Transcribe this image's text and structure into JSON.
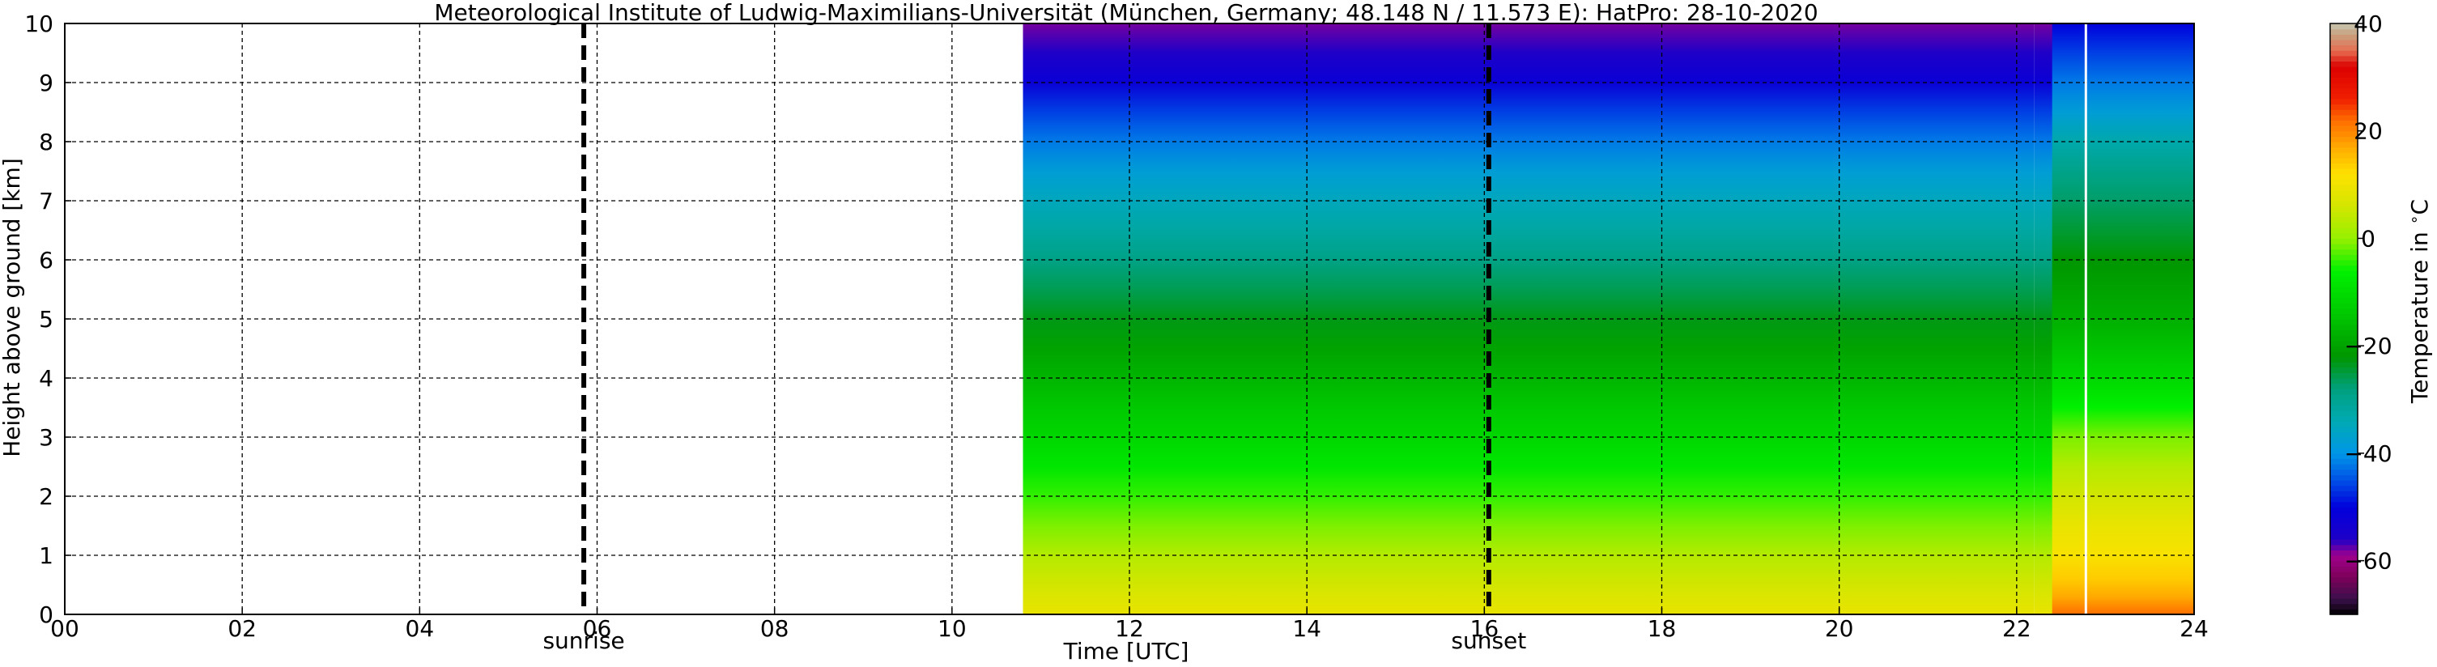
{
  "chart_data": {
    "type": "heatmap",
    "title": "Meteorological Institute of Ludwig-Maximilians-Universität (München, Germany; 48.148 N / 11.573 E):    HatPro: 28-10-2020",
    "xlabel": "Time [UTC]",
    "ylabel": "Height above ground [km]",
    "xlim": [
      0,
      24
    ],
    "ylim": [
      0,
      10
    ],
    "xticks": [
      0,
      2,
      4,
      6,
      8,
      10,
      12,
      14,
      16,
      18,
      20,
      22,
      24
    ],
    "xtick_labels": [
      "00",
      "02",
      "04",
      "06",
      "08",
      "10",
      "12",
      "14",
      "16",
      "18",
      "20",
      "22",
      "24"
    ],
    "yticks": [
      0,
      1,
      2,
      3,
      4,
      5,
      6,
      7,
      8,
      9,
      10
    ],
    "ytick_labels": [
      "0",
      "1",
      "2",
      "3",
      "4",
      "5",
      "6",
      "7",
      "8",
      "9",
      "10"
    ],
    "grid": true,
    "data_start_utc": 10.8,
    "gap_line_utc": 22.78,
    "colorbar": {
      "label": "Temperature in $^\\circ$C",
      "range": [
        -70,
        40
      ],
      "ticks": [
        40,
        20,
        0,
        -20,
        -40,
        -60
      ],
      "tick_labels": [
        "40",
        "20",
        "0",
        "−20",
        "−40",
        "−60"
      ]
    },
    "profiles": [
      {
        "time_range": [
          10.8,
          22.2
        ],
        "height_km": [
          0,
          0.5,
          1,
          1.5,
          2,
          2.5,
          3,
          3.5,
          4,
          4.5,
          5,
          5.5,
          6,
          6.5,
          7,
          7.5,
          8,
          8.5,
          9,
          9.5,
          10
        ],
        "temperature_c": [
          9,
          6,
          3,
          -1,
          -4,
          -8,
          -11,
          -14,
          -17,
          -20,
          -23,
          -26,
          -29,
          -32,
          -35,
          -38,
          -42,
          -46,
          -52,
          -56,
          -58
        ]
      },
      {
        "time_range": [
          22.6,
          24
        ],
        "height_km": [
          0,
          0.3,
          0.6,
          1,
          1.5,
          2,
          2.5,
          3,
          3.5,
          4,
          5,
          6,
          7,
          8,
          8.5,
          9,
          9.5,
          10
        ],
        "temperature_c": [
          22,
          17,
          14,
          11,
          9,
          6,
          3,
          -1,
          -6,
          -11,
          -18,
          -22,
          -27,
          -33,
          -38,
          -42,
          -46,
          -50
        ]
      }
    ],
    "annotations": [
      {
        "label": "sunrise",
        "x": 5.85
      },
      {
        "label": "sunset",
        "x": 16.05
      }
    ]
  }
}
